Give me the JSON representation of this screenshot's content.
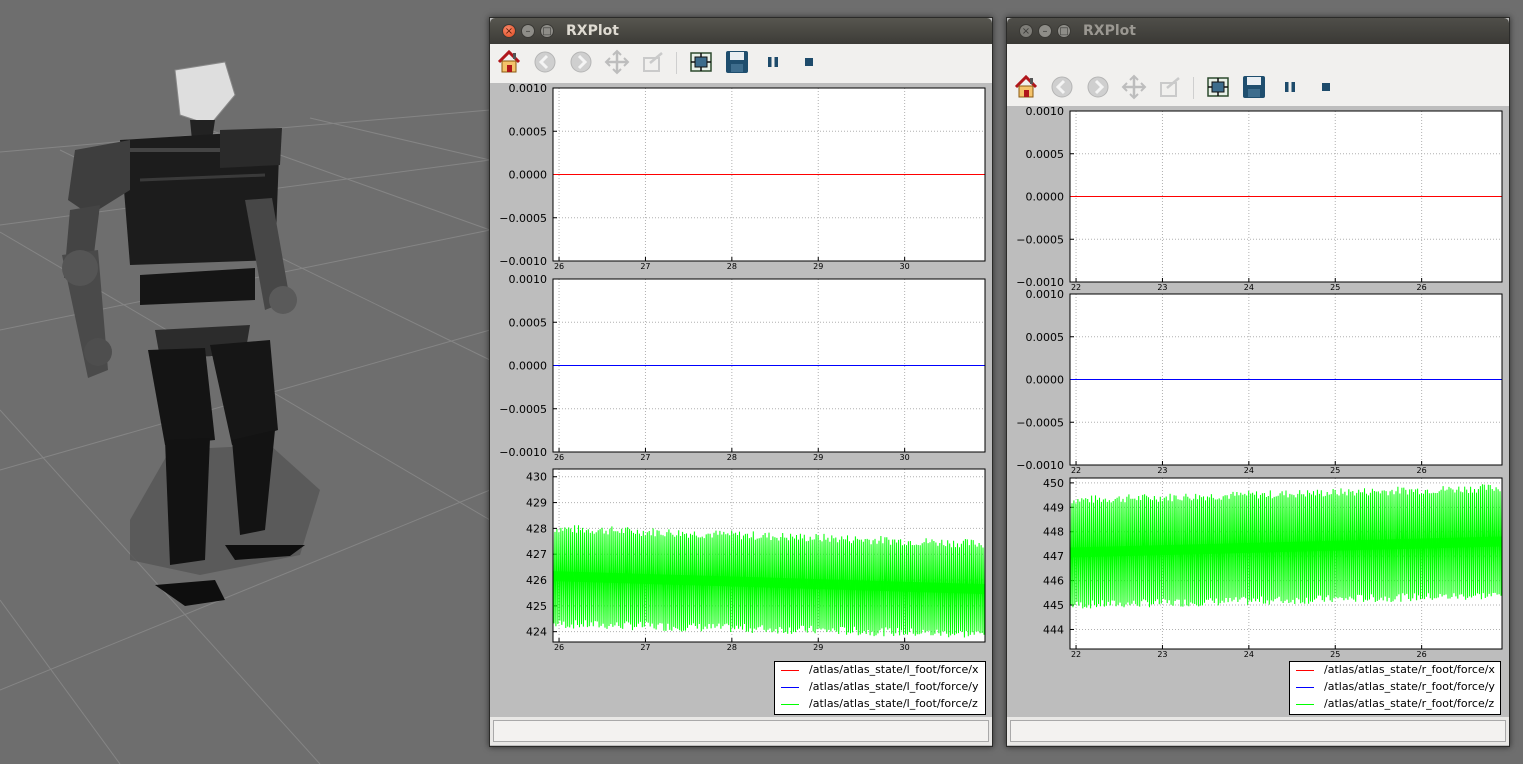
{
  "colors": {
    "x": "#ff0000",
    "y": "#0000ff",
    "z": "#00ff00"
  },
  "windows": [
    {
      "title": "RXPlot",
      "active": true,
      "toolbar_icons": [
        "home-icon",
        "back-arrow-icon",
        "forward-arrow-icon",
        "pan-icon",
        "zoom-icon",
        "subplots-config-icon",
        "save-disk-icon",
        "pause-icon",
        "stop-icon"
      ],
      "status_text": "",
      "legend": [
        "/atlas/atlas_state/l_foot/force/x",
        "/atlas/atlas_state/l_foot/force/y",
        "/atlas/atlas_state/l_foot/force/z"
      ],
      "chart_data": [
        {
          "type": "line",
          "xlim": [
            25.93,
            30.93
          ],
          "x_ticks": [
            "26",
            "27",
            "28",
            "29",
            "30"
          ],
          "ylim": [
            -0.001,
            0.001
          ],
          "y_ticks": [
            "0.0010",
            "0.0005",
            "0.0000",
            "−0.0005",
            "−0.0010"
          ],
          "grid": true,
          "series": [
            {
              "name": "/atlas/atlas_state/l_foot/force/x",
              "x": [
                25.93,
                30.93
              ],
              "y": [
                0,
                0
              ]
            }
          ]
        },
        {
          "type": "line",
          "xlim": [
            25.93,
            30.93
          ],
          "x_ticks": [
            "26",
            "27",
            "28",
            "29",
            "30"
          ],
          "ylim": [
            -0.001,
            0.001
          ],
          "y_ticks": [
            "0.0010",
            "0.0005",
            "0.0000",
            "−0.0005",
            "−0.0010"
          ],
          "grid": true,
          "series": [
            {
              "name": "/atlas/atlas_state/l_foot/force/y",
              "x": [
                25.93,
                30.93
              ],
              "y": [
                0,
                0
              ]
            }
          ]
        },
        {
          "type": "line",
          "xlim": [
            25.93,
            30.93
          ],
          "x_ticks": [
            "26",
            "27",
            "28",
            "29",
            "30"
          ],
          "ylim": [
            423.6,
            430.3
          ],
          "y_ticks": [
            "430",
            "429",
            "428",
            "427",
            "426",
            "425",
            "424"
          ],
          "grid": true,
          "series": [
            {
              "name": "/atlas/atlas_state/l_foot/force/z",
              "oscillating": true,
              "upper_envelope": [
                [
                  25.93,
                  428.0
                ],
                [
                  30.93,
                  427.4
                ]
              ],
              "lower_envelope": [
                [
                  25.93,
                  424.3
                ],
                [
                  30.93,
                  423.9
                ]
              ]
            }
          ]
        }
      ]
    },
    {
      "title": "RXPlot",
      "active": false,
      "toolbar_icons": [
        "home-icon",
        "back-arrow-icon",
        "forward-arrow-icon",
        "pan-icon",
        "zoom-icon",
        "subplots-config-icon",
        "save-disk-icon",
        "pause-icon",
        "stop-icon"
      ],
      "status_text": "",
      "legend": [
        "/atlas/atlas_state/r_foot/force/x",
        "/atlas/atlas_state/r_foot/force/y",
        "/atlas/atlas_state/r_foot/force/z"
      ],
      "chart_data": [
        {
          "type": "line",
          "xlim": [
            21.93,
            26.93
          ],
          "x_ticks": [
            "22",
            "23",
            "24",
            "25",
            "26"
          ],
          "ylim": [
            -0.001,
            0.001
          ],
          "y_ticks": [
            "0.0010",
            "0.0005",
            "0.0000",
            "−0.0005",
            "−0.0010"
          ],
          "grid": true,
          "series": [
            {
              "name": "/atlas/atlas_state/r_foot/force/x",
              "x": [
                21.93,
                26.93
              ],
              "y": [
                0,
                0
              ]
            }
          ]
        },
        {
          "type": "line",
          "xlim": [
            21.93,
            26.93
          ],
          "x_ticks": [
            "22",
            "23",
            "24",
            "25",
            "26"
          ],
          "ylim": [
            -0.001,
            0.001
          ],
          "y_ticks": [
            "0.0010",
            "0.0005",
            "0.0000",
            "−0.0005",
            "−0.0010"
          ],
          "grid": true,
          "series": [
            {
              "name": "/atlas/atlas_state/r_foot/force/y",
              "x": [
                21.93,
                26.93
              ],
              "y": [
                0,
                0
              ]
            }
          ]
        },
        {
          "type": "line",
          "xlim": [
            21.93,
            26.93
          ],
          "x_ticks": [
            "22",
            "23",
            "24",
            "25",
            "26"
          ],
          "ylim": [
            443.2,
            450.2
          ],
          "y_ticks": [
            "450",
            "449",
            "448",
            "447",
            "446",
            "445",
            "444"
          ],
          "grid": true,
          "series": [
            {
              "name": "/atlas/atlas_state/r_foot/force/z",
              "oscillating": true,
              "upper_envelope": [
                [
                  21.93,
                  449.3
                ],
                [
                  26.93,
                  449.8
                ]
              ],
              "lower_envelope": [
                [
                  21.93,
                  445.0
                ],
                [
                  26.93,
                  445.4
                ]
              ]
            }
          ]
        }
      ]
    }
  ]
}
